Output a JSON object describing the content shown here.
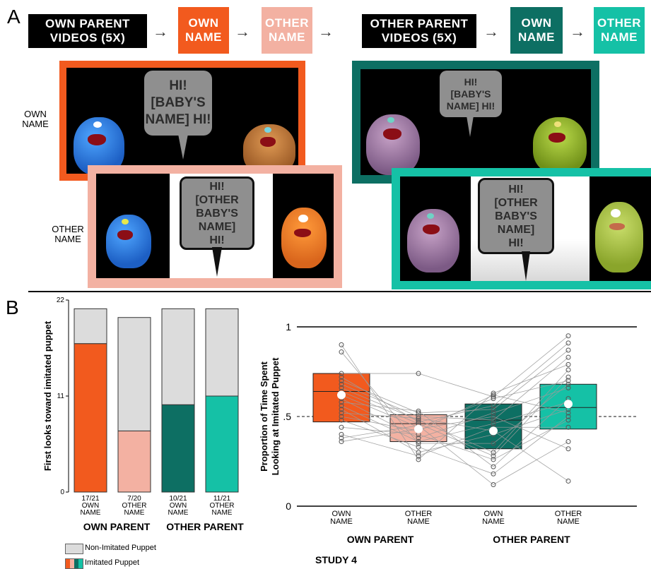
{
  "panel_a": {
    "letter": "A",
    "flow": [
      {
        "text": "OWN PARENT\nVIDEOS (5X)",
        "bg": "#000000",
        "fg": "#ffffff"
      },
      {
        "text": "OWN\nNAME",
        "bg": "#f25a1e",
        "fg": "#ffffff"
      },
      {
        "text": "OTHER\nNAME",
        "bg": "#f3b1a2",
        "fg": "#ffffff"
      },
      {
        "text": "OTHER PARENT\nVIDEOS (5X)",
        "bg": "#000000",
        "fg": "#ffffff"
      },
      {
        "text": "OWN\nNAME",
        "bg": "#0d6f63",
        "fg": "#ffffff"
      },
      {
        "text": "OTHER\nNAME",
        "bg": "#15c1a6",
        "fg": "#ffffff"
      }
    ],
    "arrow": "→",
    "row_label_own": "OWN\nNAME",
    "row_label_other": "OTHER\nNAME",
    "bubbles": {
      "own_left": "HI!\n[BABY'S\nNAME] HI!",
      "other_left": "HI!\n[OTHER\nBABY'S\nNAME]\nHI!",
      "own_right": "HI!\n[BABY'S\nNAME] HI!",
      "other_right": "HI!\n[OTHER\nBABY'S\nNAME]\nHI!"
    },
    "frame_colors": {
      "own_left": "#f25a1e",
      "other_left": "#f3b1a2",
      "own_right": "#0d6f63",
      "other_right": "#15c1a6"
    }
  },
  "panel_b": {
    "letter": "B",
    "colors": {
      "own_parent_own_name": "#f25a1e",
      "own_parent_other_name": "#f3b1a2",
      "other_parent_own_name": "#0d6f63",
      "other_parent_other_name": "#15c1a6",
      "non_imitated": "#dcdcdc"
    },
    "legend": {
      "non_imitated": "Non-Imitated Puppet",
      "imitated": "Imitated Puppet"
    },
    "study_label": "STUDY 4"
  },
  "chart_data": [
    {
      "type": "bar",
      "stacked": true,
      "ylabel": "First looks toward imitated puppet",
      "ylim": [
        0,
        22
      ],
      "yticks": [
        "0",
        "11",
        "22"
      ],
      "categories": [
        "17/21\nOWN\nNAME",
        "7/20\nOTHER\nNAME",
        "10/21\nOWN\nNAME",
        "11/21\nOTHER\nNAME"
      ],
      "groups": [
        "OWN PARENT",
        "OTHER PARENT"
      ],
      "series": [
        {
          "name": "Imitated Puppet",
          "values": [
            17,
            7,
            10,
            11
          ]
        },
        {
          "name": "Non-Imitated Puppet",
          "values": [
            4,
            13,
            11,
            10
          ]
        }
      ]
    },
    {
      "type": "box",
      "ylabel": "Proportion of Time Spent\nLooking at Imitated Puppet",
      "ylim": [
        0,
        1
      ],
      "yticks": [
        "0",
        ".5",
        "1"
      ],
      "reference_line": 0.5,
      "categories": [
        "OWN\nNAME",
        "OTHER\nNAME",
        "OWN\nNAME",
        "OTHER\nNAME"
      ],
      "groups": [
        "OWN PARENT",
        "OTHER PARENT"
      ],
      "boxes": [
        {
          "q1": 0.47,
          "median": 0.64,
          "q3": 0.74,
          "mean": 0.62
        },
        {
          "q1": 0.36,
          "median": 0.46,
          "q3": 0.51,
          "mean": 0.43
        },
        {
          "q1": 0.32,
          "median": 0.48,
          "q3": 0.57,
          "mean": 0.42
        },
        {
          "q1": 0.43,
          "median": 0.55,
          "q3": 0.68,
          "mean": 0.57
        }
      ],
      "subjects": [
        [
          0.9,
          0.26,
          0.63,
          0.79
        ],
        [
          0.86,
          0.35,
          0.35,
          0.68
        ],
        [
          0.74,
          0.74,
          0.61,
          0.95
        ],
        [
          0.72,
          0.47,
          0.56,
          0.91
        ],
        [
          0.7,
          0.52,
          0.54,
          0.87
        ],
        [
          0.68,
          0.5,
          0.48,
          0.83
        ],
        [
          0.66,
          0.48,
          0.3,
          0.76
        ],
        [
          0.64,
          0.46,
          0.28,
          0.72
        ],
        [
          0.62,
          0.44,
          0.6,
          0.7
        ],
        [
          0.6,
          0.38,
          0.52,
          0.66
        ],
        [
          0.58,
          0.53,
          0.22,
          0.6
        ],
        [
          0.56,
          0.36,
          0.46,
          0.58
        ],
        [
          0.54,
          0.3,
          0.4,
          0.54
        ],
        [
          0.5,
          0.42,
          0.62,
          0.52
        ],
        [
          0.48,
          0.33,
          0.18,
          0.5
        ],
        [
          0.44,
          0.4,
          0.26,
          0.48
        ],
        [
          0.4,
          0.28,
          0.44,
          0.44
        ],
        [
          0.38,
          0.45,
          0.12,
          0.36
        ],
        [
          0.36,
          0.43,
          0.5,
          0.32
        ],
        [
          0.52,
          0.49,
          0.42,
          0.14
        ]
      ]
    }
  ]
}
